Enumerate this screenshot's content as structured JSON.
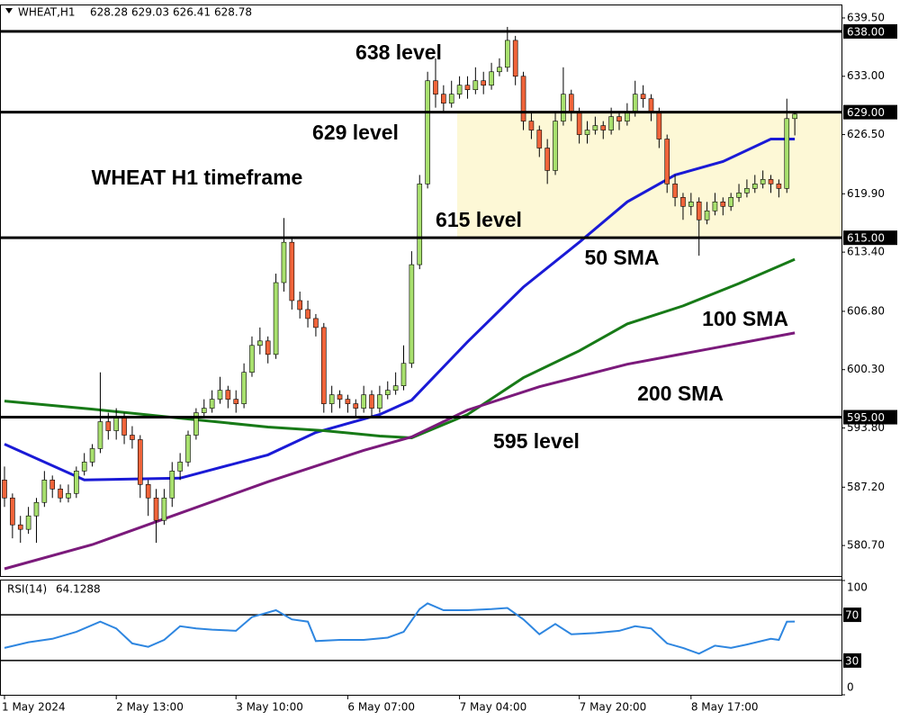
{
  "chart_data": [
    {
      "type": "candlestick",
      "symbol": "WHEAT,H1",
      "categories": [
        "1 May 2024",
        null,
        null,
        null,
        null,
        null,
        null,
        null,
        null,
        null,
        null,
        null,
        null,
        null,
        "2 May 13:00",
        null,
        null,
        null,
        null,
        null,
        null,
        null,
        null,
        null,
        null,
        null,
        null,
        null,
        null,
        "3 May 10:00",
        null,
        null,
        null,
        null,
        null,
        null,
        null,
        null,
        null,
        null,
        null,
        null,
        null,
        "6 May 07:00",
        null,
        null,
        null,
        null,
        null,
        null,
        null,
        null,
        null,
        null,
        null,
        null,
        null,
        "7 May 04:00",
        null,
        null,
        null,
        null,
        null,
        null,
        null,
        null,
        null,
        null,
        null,
        null,
        null,
        null,
        "7 May 20:00",
        null,
        null,
        null,
        null,
        null,
        null,
        null,
        null,
        null,
        null,
        null,
        null,
        null,
        "8 May 17:00",
        null,
        null,
        null,
        null,
        null,
        null,
        null,
        null,
        null,
        null,
        null,
        null,
        null
      ],
      "open": [
        588,
        586,
        583,
        582.5,
        584,
        585.5,
        588,
        587,
        586,
        586.5,
        589,
        590,
        591.5,
        594.5,
        593.5,
        595,
        593,
        592.5,
        587.5,
        586,
        583.5,
        586,
        589,
        590,
        593,
        595.5,
        596,
        597,
        598,
        597,
        596.5,
        600,
        603,
        603.5,
        602,
        610,
        614.5,
        608,
        607,
        606,
        605,
        596.5,
        597.5,
        597,
        596.5,
        596,
        597.5,
        596,
        597.5,
        598,
        598.5,
        601,
        612,
        621,
        632.5,
        631,
        630,
        631,
        632,
        631.5,
        632.5,
        632,
        633.5,
        634,
        637,
        633,
        628,
        627,
        625,
        622.5,
        628,
        631,
        629,
        626.5,
        627,
        627.5,
        627,
        628.5,
        628,
        629,
        631,
        630.5,
        629,
        626,
        621,
        619.5,
        618.5,
        619,
        617,
        618,
        619,
        618.5,
        619.5,
        620,
        620.5,
        621,
        621.5,
        621,
        620.5,
        628.28
      ],
      "high": [
        589.5,
        586.5,
        584,
        585,
        586,
        589,
        588.5,
        587.5,
        587.5,
        589.5,
        591,
        592,
        600,
        595.5,
        596,
        595.5,
        594,
        593,
        588,
        587,
        587,
        590,
        591,
        593.5,
        596,
        597,
        598,
        599.5,
        598.5,
        598,
        601,
        604,
        605,
        604,
        611,
        617.2,
        615,
        609,
        608,
        606.5,
        605.5,
        598.5,
        598,
        597.5,
        597,
        598.5,
        598,
        598.5,
        599,
        600,
        603,
        613.5,
        622,
        633.5,
        635,
        632,
        632.5,
        633,
        633,
        634,
        633.5,
        634.5,
        635,
        638.5,
        637.5,
        633.5,
        629,
        627.5,
        626,
        629,
        634,
        631.5,
        629.5,
        628,
        628.5,
        628,
        629.5,
        629,
        630,
        632.5,
        632,
        631,
        629.5,
        626.5,
        622,
        620,
        620,
        619.5,
        619,
        620,
        619.5,
        620,
        621,
        621.5,
        622,
        622.5,
        622,
        621.5,
        630.5,
        629.03
      ],
      "low": [
        585,
        581.5,
        581,
        582,
        581,
        585,
        586,
        585.5,
        585.5,
        586,
        588.5,
        589.5,
        591,
        592.5,
        592.5,
        592,
        591.5,
        586,
        584,
        581,
        583,
        585,
        588,
        589.5,
        592.5,
        595,
        595.5,
        596.5,
        596,
        595.5,
        596,
        599.5,
        602,
        601,
        601.5,
        609,
        607,
        606,
        605,
        604,
        595.5,
        595.5,
        596,
        595.5,
        595,
        595.5,
        595,
        595.5,
        597,
        597.5,
        598,
        600.5,
        611.5,
        620.5,
        629.5,
        629,
        629.5,
        630.5,
        630.5,
        631,
        631,
        631.5,
        633,
        633.5,
        632,
        627,
        626,
        624,
        621,
        622,
        627.5,
        628,
        625.5,
        625.5,
        626.5,
        626,
        626.5,
        627,
        627.5,
        628.5,
        629.5,
        628,
        625,
        620,
        618.5,
        617,
        617.5,
        613,
        616.5,
        617.5,
        617.5,
        618,
        619,
        619.5,
        620,
        620.5,
        620,
        619.5,
        620,
        626.41
      ],
      "close": [
        586,
        583,
        582.5,
        584,
        585.5,
        588,
        587,
        586,
        586.5,
        589,
        590,
        591.5,
        594.5,
        593.5,
        595,
        593,
        592.5,
        587.5,
        586,
        583.5,
        586,
        589,
        590,
        593,
        595.5,
        596,
        597,
        598,
        597,
        596.5,
        600,
        603,
        603.5,
        602,
        610,
        614.5,
        608,
        607,
        606,
        605,
        596.5,
        597.5,
        597,
        596.5,
        596,
        597.5,
        596,
        597.5,
        598,
        598.5,
        601,
        612,
        621,
        632.5,
        631,
        630,
        631,
        632,
        631.5,
        632.5,
        632,
        633.5,
        634,
        637,
        633,
        628,
        627,
        625,
        622.5,
        628,
        631,
        629,
        626.5,
        627,
        627.5,
        627,
        628.5,
        628,
        629,
        631,
        630.5,
        629,
        626,
        621,
        619.5,
        618.5,
        619,
        617,
        618,
        619,
        618.5,
        619.5,
        620,
        620.5,
        621,
        621.5,
        621,
        620.5,
        628.28,
        628.78
      ],
      "color_up": "#a8e06e",
      "color_down": "#f0643a",
      "ylim": [
        577.3,
        641
      ],
      "yticks": [
        {
          "value": 639.5,
          "label": "639.50"
        },
        {
          "value": 633,
          "label": "633.00"
        },
        {
          "value": 626.5,
          "label": "626.50"
        },
        {
          "value": 619.9,
          "label": "619.90"
        },
        {
          "value": 613.4,
          "label": "613.40"
        },
        {
          "value": 606.8,
          "label": "606.80"
        },
        {
          "value": 600.3,
          "label": "600.30"
        },
        {
          "value": 593.8,
          "label": "593.80"
        },
        {
          "value": 587.2,
          "label": "587.20"
        },
        {
          "value": 580.7,
          "label": "580.70"
        }
      ],
      "levels": [
        {
          "value": 638,
          "label": "638.00",
          "text": "638 level"
        },
        {
          "value": 629,
          "label": "629.00",
          "text": "629 level"
        },
        {
          "value": 615,
          "label": "615.00",
          "text": "615 level"
        },
        {
          "value": 595,
          "label": "595.00",
          "text": "595 level"
        }
      ],
      "annotation": "WHEAT H1 timeframe",
      "series": [
        {
          "name": "50 SMA",
          "color": "#1a1ad6",
          "x": [
            0,
            10,
            22,
            33,
            39,
            47,
            51,
            58,
            65,
            72,
            78,
            84,
            90,
            96,
            99
          ],
          "values": [
            592,
            588,
            588.2,
            590.8,
            593.3,
            595.3,
            596.9,
            603.4,
            609.5,
            614.5,
            619,
            622,
            623.5,
            626,
            626
          ]
        },
        {
          "name": "100 SMA",
          "color": "#177a17",
          "x": [
            0,
            11,
            22,
            33,
            40,
            47,
            51,
            58,
            65,
            72,
            78,
            85,
            92,
            99
          ],
          "values": [
            596.8,
            595.9,
            594.9,
            593.9,
            593.5,
            592.9,
            592.7,
            595.3,
            599.4,
            602.4,
            605.4,
            607.4,
            609.9,
            612.6
          ]
        },
        {
          "name": "200 SMA",
          "color": "#7b1a7b",
          "x": [
            0,
            11,
            22,
            33,
            45,
            51,
            58,
            67,
            78,
            90,
            99
          ],
          "values": [
            578.1,
            580.8,
            584.3,
            587.8,
            591.3,
            592.8,
            595.8,
            598.4,
            600.9,
            602.9,
            604.4
          ]
        }
      ]
    },
    {
      "type": "line",
      "title": "RSI(14)",
      "series": [
        {
          "color": "#2e86e0",
          "x": [
            0,
            3,
            6,
            9,
            12,
            14,
            16,
            18,
            20,
            22,
            24,
            26,
            29,
            31,
            34,
            36,
            38,
            39,
            42,
            45,
            48,
            50,
            52,
            53,
            55,
            58,
            61,
            63,
            65,
            67,
            69,
            71,
            74,
            77,
            79,
            81,
            83,
            85,
            87,
            89,
            91,
            93,
            96,
            97,
            98,
            99
          ],
          "values": [
            41,
            46,
            49,
            55,
            64,
            58,
            45,
            42,
            48,
            60,
            58,
            57,
            56,
            68,
            74,
            66,
            64,
            47,
            48,
            48,
            50,
            55,
            75,
            80,
            74,
            74,
            75,
            76,
            66,
            53,
            62,
            53,
            54,
            56,
            60,
            58,
            45,
            41,
            36,
            43,
            41,
            44,
            49,
            48,
            64,
            64.1288
          ]
        }
      ],
      "ylim": [
        0,
        100
      ],
      "yticks": [
        100,
        0
      ],
      "levels": [
        70,
        30
      ]
    }
  ]
}
